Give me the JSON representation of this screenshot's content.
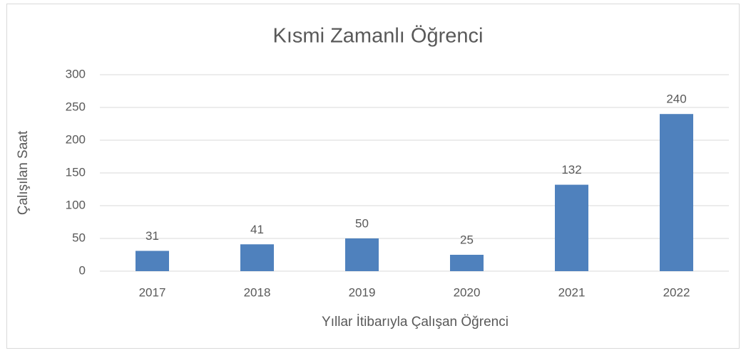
{
  "chart_data": {
    "type": "bar",
    "title": "Kısmi Zamanlı Öğrenci",
    "x_label": "Yıllar İtibarıyla Çalışan Öğrenci",
    "y_label": "Çalışılan Saat",
    "categories": [
      "2017",
      "2018",
      "2019",
      "2020",
      "2021",
      "2022"
    ],
    "values": [
      31,
      41,
      50,
      25,
      132,
      240
    ],
    "color": "#4f81bd",
    "ylim": [
      0,
      300
    ],
    "yticks": [
      0,
      50,
      100,
      150,
      200,
      250,
      300
    ],
    "grid": true
  }
}
